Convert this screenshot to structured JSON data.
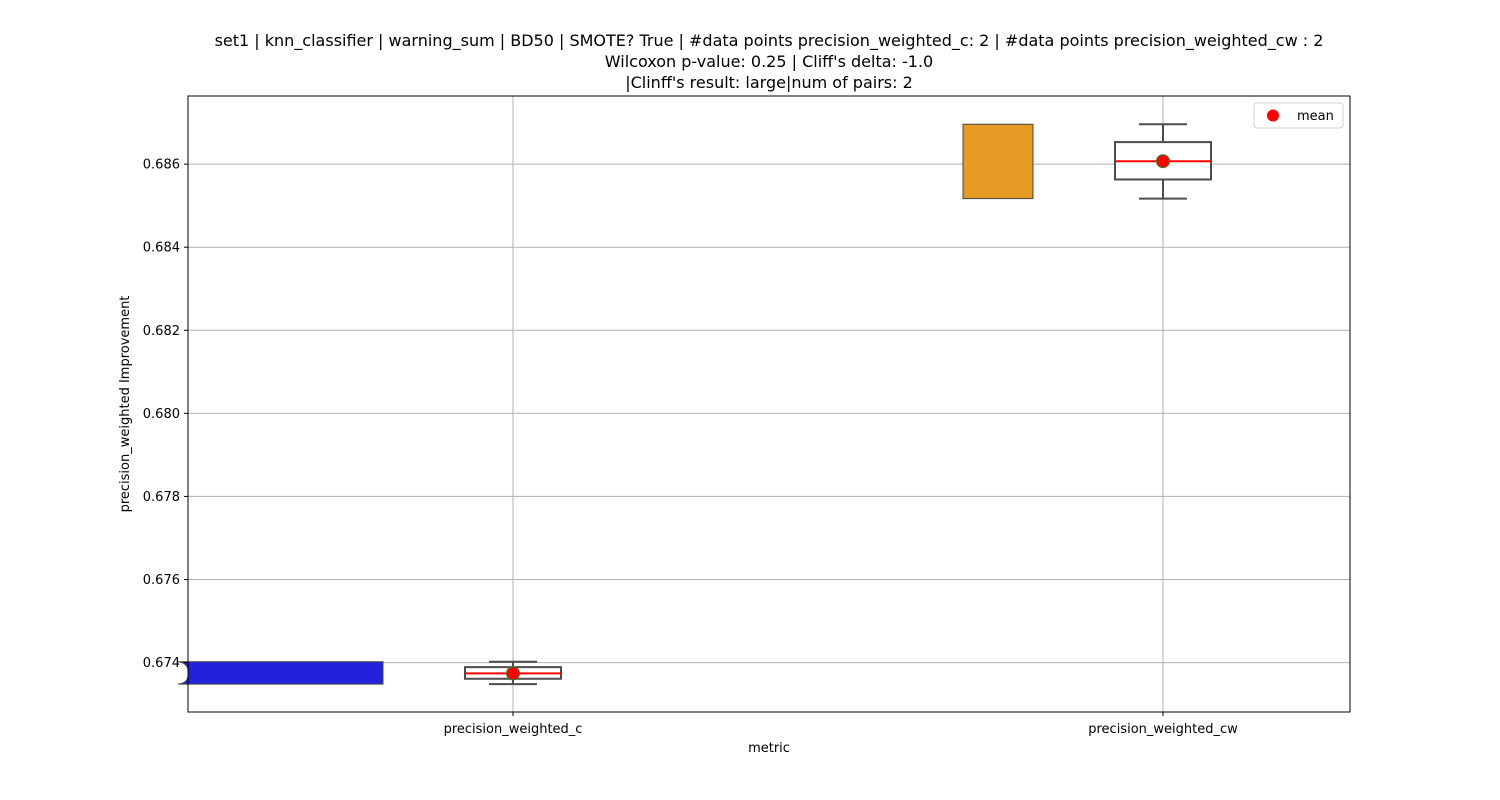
{
  "title_lines": [
    "set1 | knn_classifier | warning_sum | BD50 | SMOTE? True | #data points precision_weighted_c: 2 | #data points precision_weighted_cw : 2",
    "Wilcoxon p-value: 0.25 | Cliff's delta: -1.0",
    "|Clinff's result: large|num of pairs: 2"
  ],
  "chart_data": {
    "type": "box",
    "xlabel": "metric",
    "ylabel": "precision_weighted Improvement",
    "ylim": [
      0.67281,
      0.68764
    ],
    "yticks": [
      "0.674",
      "0.676",
      "0.678",
      "0.680",
      "0.682",
      "0.684",
      "0.686"
    ],
    "grid": true,
    "legend": {
      "position": "top-right",
      "entries": [
        {
          "label": "mean",
          "color": "#ff0000",
          "marker": "circle"
        }
      ]
    },
    "categories": [
      "precision_weighted_c",
      "precision_weighted_cw"
    ],
    "series": [
      {
        "category": "precision_weighted_c",
        "violin_color": "#2222dd",
        "min": 0.67348,
        "q1": 0.67361,
        "median": 0.67374,
        "q3": 0.67389,
        "max": 0.67402,
        "mean": 0.67374
      },
      {
        "category": "precision_weighted_cw",
        "violin_color": "#e69c24",
        "min": 0.68517,
        "q1": 0.68563,
        "median": 0.68607,
        "q3": 0.68653,
        "max": 0.68696,
        "mean": 0.68607
      }
    ],
    "mean_color": "#ff0000",
    "median_color": "#ff0000"
  }
}
